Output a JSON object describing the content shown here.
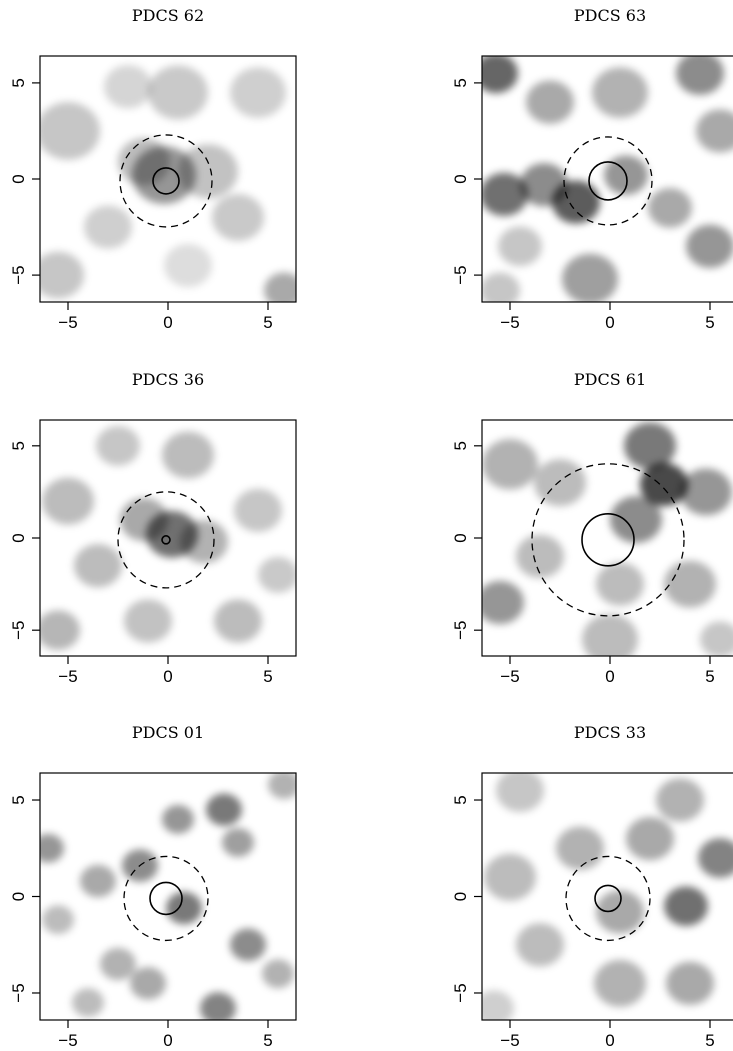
{
  "figure": {
    "panels": [
      {
        "title": "PDCS 62",
        "xticks": [
          "-5",
          "0",
          "5"
        ],
        "yticks": [
          "-5",
          "0",
          "5"
        ],
        "xlim": [
          -6.4,
          6.4
        ],
        "ylim": [
          -6.4,
          6.4
        ],
        "solid_circle": {
          "x": -0.1,
          "y": -0.1,
          "r": 0.65
        },
        "dashed_circle": {
          "x": -0.1,
          "y": -0.1,
          "r": 2.3
        },
        "blobs": [
          {
            "x": -0.2,
            "y": 0.2,
            "s": 1.6,
            "a": 0.55
          },
          {
            "x": -1.2,
            "y": 0.9,
            "s": 1.3,
            "a": 0.35
          },
          {
            "x": 2.0,
            "y": 0.4,
            "s": 1.5,
            "a": 0.32
          },
          {
            "x": -5.0,
            "y": 2.5,
            "s": 1.6,
            "a": 0.3
          },
          {
            "x": -3.0,
            "y": -2.5,
            "s": 1.2,
            "a": 0.25
          },
          {
            "x": 3.5,
            "y": -2.0,
            "s": 1.3,
            "a": 0.28
          },
          {
            "x": 5.8,
            "y": -5.8,
            "s": 1.0,
            "a": 0.45
          },
          {
            "x": 4.5,
            "y": 4.5,
            "s": 1.4,
            "a": 0.25
          },
          {
            "x": 0.5,
            "y": 4.5,
            "s": 1.5,
            "a": 0.28
          },
          {
            "x": -2.0,
            "y": 4.8,
            "s": 1.2,
            "a": 0.22
          },
          {
            "x": -5.5,
            "y": -5.0,
            "s": 1.3,
            "a": 0.3
          },
          {
            "x": 1.0,
            "y": -4.5,
            "s": 1.2,
            "a": 0.18
          }
        ]
      },
      {
        "title": "PDCS 63",
        "xticks": [
          "-5",
          "0",
          "5"
        ],
        "yticks": [
          "-5",
          "0",
          "5"
        ],
        "xlim": [
          -6.4,
          6.4
        ],
        "ylim": [
          -6.4,
          6.4
        ],
        "solid_circle": {
          "x": -0.1,
          "y": -0.1,
          "r": 0.95
        },
        "dashed_circle": {
          "x": -0.1,
          "y": -0.1,
          "r": 2.2
        },
        "blobs": [
          {
            "x": -5.7,
            "y": 5.5,
            "s": 1.1,
            "a": 0.8
          },
          {
            "x": -1.7,
            "y": -1.2,
            "s": 1.2,
            "a": 0.85
          },
          {
            "x": -5.3,
            "y": -0.8,
            "s": 1.2,
            "a": 0.75
          },
          {
            "x": -3.3,
            "y": -0.3,
            "s": 1.2,
            "a": 0.6
          },
          {
            "x": 0.8,
            "y": 0.2,
            "s": 1.1,
            "a": 0.55
          },
          {
            "x": -3.0,
            "y": 4.0,
            "s": 1.2,
            "a": 0.45
          },
          {
            "x": 0.5,
            "y": 4.5,
            "s": 1.4,
            "a": 0.4
          },
          {
            "x": 4.5,
            "y": 5.5,
            "s": 1.2,
            "a": 0.6
          },
          {
            "x": 5.5,
            "y": 2.5,
            "s": 1.2,
            "a": 0.45
          },
          {
            "x": 3.0,
            "y": -1.5,
            "s": 1.1,
            "a": 0.45
          },
          {
            "x": 5.0,
            "y": -3.5,
            "s": 1.2,
            "a": 0.55
          },
          {
            "x": -4.5,
            "y": -3.5,
            "s": 1.1,
            "a": 0.3
          },
          {
            "x": -1.0,
            "y": -5.2,
            "s": 1.4,
            "a": 0.5
          },
          {
            "x": -5.5,
            "y": -5.8,
            "s": 1.0,
            "a": 0.3
          }
        ]
      },
      {
        "title": "PDCS 36",
        "xticks": [
          "-5",
          "0",
          "5"
        ],
        "yticks": [
          "-5",
          "0",
          "5"
        ],
        "xlim": [
          -6.4,
          6.4
        ],
        "ylim": [
          -6.4,
          6.4
        ],
        "solid_circle": {
          "x": -0.1,
          "y": -0.1,
          "r": 0.2
        },
        "dashed_circle": {
          "x": -0.1,
          "y": -0.1,
          "r": 2.4
        },
        "blobs": [
          {
            "x": 0.2,
            "y": 0.2,
            "s": 1.3,
            "a": 0.75
          },
          {
            "x": -1.2,
            "y": 1.0,
            "s": 1.2,
            "a": 0.45
          },
          {
            "x": 1.8,
            "y": -0.2,
            "s": 1.2,
            "a": 0.4
          },
          {
            "x": -5.0,
            "y": 2.0,
            "s": 1.3,
            "a": 0.35
          },
          {
            "x": -3.5,
            "y": -1.5,
            "s": 1.2,
            "a": 0.35
          },
          {
            "x": -5.5,
            "y": -5.0,
            "s": 1.1,
            "a": 0.38
          },
          {
            "x": 1.0,
            "y": 4.5,
            "s": 1.3,
            "a": 0.35
          },
          {
            "x": 3.5,
            "y": -4.5,
            "s": 1.2,
            "a": 0.35
          },
          {
            "x": 4.5,
            "y": 1.5,
            "s": 1.2,
            "a": 0.3
          },
          {
            "x": -1.0,
            "y": -4.5,
            "s": 1.2,
            "a": 0.32
          },
          {
            "x": 5.5,
            "y": -2.0,
            "s": 1.0,
            "a": 0.28
          },
          {
            "x": -2.5,
            "y": 5.0,
            "s": 1.1,
            "a": 0.3
          }
        ]
      },
      {
        "title": "PDCS 61",
        "xticks": [
          "-5",
          "0",
          "5"
        ],
        "yticks": [
          "-5",
          "0",
          "5"
        ],
        "xlim": [
          -6.4,
          6.4
        ],
        "ylim": [
          -6.4,
          6.4
        ],
        "solid_circle": {
          "x": -0.1,
          "y": -0.1,
          "r": 1.3
        },
        "dashed_circle": {
          "x": -0.1,
          "y": -0.1,
          "r": 3.8
        },
        "blobs": [
          {
            "x": 2.7,
            "y": 2.9,
            "s": 1.2,
            "a": 0.95
          },
          {
            "x": 2.0,
            "y": 5.0,
            "s": 1.3,
            "a": 0.7
          },
          {
            "x": 1.3,
            "y": 1.0,
            "s": 1.3,
            "a": 0.6
          },
          {
            "x": 4.8,
            "y": 2.5,
            "s": 1.3,
            "a": 0.55
          },
          {
            "x": -5.0,
            "y": 4.0,
            "s": 1.4,
            "a": 0.4
          },
          {
            "x": -2.5,
            "y": 3.0,
            "s": 1.3,
            "a": 0.35
          },
          {
            "x": -5.5,
            "y": -3.5,
            "s": 1.2,
            "a": 0.55
          },
          {
            "x": -3.5,
            "y": -1.0,
            "s": 1.2,
            "a": 0.35
          },
          {
            "x": 0.5,
            "y": -2.5,
            "s": 1.2,
            "a": 0.35
          },
          {
            "x": 4.0,
            "y": -2.5,
            "s": 1.3,
            "a": 0.4
          },
          {
            "x": 0.0,
            "y": -5.5,
            "s": 1.4,
            "a": 0.35
          },
          {
            "x": 5.5,
            "y": -5.5,
            "s": 1.0,
            "a": 0.3
          }
        ]
      },
      {
        "title": "PDCS 01",
        "xticks": [
          "-5",
          "0",
          "5"
        ],
        "yticks": [
          "-5",
          "0",
          "5"
        ],
        "xlim": [
          -6.4,
          6.4
        ],
        "ylim": [
          -6.4,
          6.4
        ],
        "solid_circle": {
          "x": -0.1,
          "y": -0.1,
          "r": 0.8
        },
        "dashed_circle": {
          "x": -0.1,
          "y": -0.1,
          "r": 2.1
        },
        "blobs": [
          {
            "x": 0.8,
            "y": -0.6,
            "s": 0.9,
            "a": 0.7
          },
          {
            "x": -1.4,
            "y": 1.6,
            "s": 0.9,
            "a": 0.6
          },
          {
            "x": 2.8,
            "y": 4.5,
            "s": 0.9,
            "a": 0.7
          },
          {
            "x": 0.5,
            "y": 4.0,
            "s": 0.8,
            "a": 0.55
          },
          {
            "x": 3.5,
            "y": 2.8,
            "s": 0.8,
            "a": 0.5
          },
          {
            "x": -6.0,
            "y": 2.5,
            "s": 0.8,
            "a": 0.55
          },
          {
            "x": -3.5,
            "y": 0.8,
            "s": 0.9,
            "a": 0.45
          },
          {
            "x": 4.0,
            "y": -2.5,
            "s": 0.9,
            "a": 0.6
          },
          {
            "x": 5.8,
            "y": 5.8,
            "s": 0.8,
            "a": 0.4
          },
          {
            "x": -2.5,
            "y": -3.5,
            "s": 0.9,
            "a": 0.4
          },
          {
            "x": -1.0,
            "y": -4.5,
            "s": 0.9,
            "a": 0.45
          },
          {
            "x": 2.5,
            "y": -5.8,
            "s": 0.9,
            "a": 0.65
          },
          {
            "x": -4.0,
            "y": -5.5,
            "s": 0.8,
            "a": 0.35
          },
          {
            "x": -5.5,
            "y": -1.2,
            "s": 0.8,
            "a": 0.35
          },
          {
            "x": 5.5,
            "y": -4.0,
            "s": 0.8,
            "a": 0.4
          }
        ]
      },
      {
        "title": "PDCS 33",
        "xticks": [
          "-5",
          "0",
          "5"
        ],
        "yticks": [
          "-5",
          "0",
          "5"
        ],
        "xlim": [
          -6.4,
          6.4
        ],
        "ylim": [
          -6.4,
          6.4
        ],
        "solid_circle": {
          "x": -0.1,
          "y": -0.1,
          "r": 0.65
        },
        "dashed_circle": {
          "x": -0.1,
          "y": -0.1,
          "r": 2.1
        },
        "blobs": [
          {
            "x": 3.8,
            "y": -0.5,
            "s": 1.1,
            "a": 0.75
          },
          {
            "x": 5.5,
            "y": 2.0,
            "s": 1.1,
            "a": 0.65
          },
          {
            "x": 0.5,
            "y": -0.8,
            "s": 1.2,
            "a": 0.45
          },
          {
            "x": -1.5,
            "y": 2.5,
            "s": 1.2,
            "a": 0.4
          },
          {
            "x": 2.0,
            "y": 3.0,
            "s": 1.2,
            "a": 0.45
          },
          {
            "x": -5.0,
            "y": 1.0,
            "s": 1.3,
            "a": 0.35
          },
          {
            "x": -3.5,
            "y": -2.5,
            "s": 1.2,
            "a": 0.35
          },
          {
            "x": 0.5,
            "y": -4.5,
            "s": 1.3,
            "a": 0.4
          },
          {
            "x": 4.0,
            "y": -4.5,
            "s": 1.2,
            "a": 0.45
          },
          {
            "x": 3.5,
            "y": 5.0,
            "s": 1.2,
            "a": 0.4
          },
          {
            "x": -4.5,
            "y": 5.5,
            "s": 1.2,
            "a": 0.3
          },
          {
            "x": -5.8,
            "y": -5.8,
            "s": 1.0,
            "a": 0.25
          }
        ]
      }
    ]
  }
}
